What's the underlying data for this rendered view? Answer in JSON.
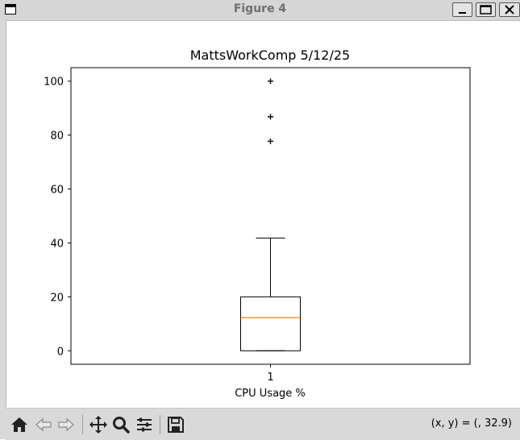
{
  "window": {
    "title": "Figure 4",
    "buttons": [
      "minimize",
      "maximize",
      "close"
    ]
  },
  "toolbar": {
    "icons": [
      "home-icon",
      "back-arrow-icon",
      "forward-arrow-icon",
      "pan-icon",
      "zoom-icon",
      "configure-subplots-icon",
      "save-icon"
    ],
    "coordinate_readout": "(x, y) = (, 32.9)"
  },
  "colors": {
    "median": "#ff7f0e",
    "box": "#000000",
    "flier": "#000000"
  },
  "chart_data": {
    "type": "box",
    "title": "MattsWorkComp 5/12/25",
    "xlabel": "CPU Usage %",
    "ylabel": "",
    "categories": [
      "1"
    ],
    "ylim": [
      -5,
      105
    ],
    "yticks": [
      0,
      20,
      40,
      60,
      80,
      100
    ],
    "ytick_labels": [
      "0",
      "20",
      "40",
      "60",
      "80",
      "100"
    ],
    "grid": false,
    "boxes": [
      {
        "name": "1",
        "whisker_low": 0,
        "q1": 0,
        "median": 12.3,
        "q3": 20,
        "whisker_high": 41.8,
        "fliers": [
          77.7,
          86.8,
          100
        ]
      }
    ]
  }
}
